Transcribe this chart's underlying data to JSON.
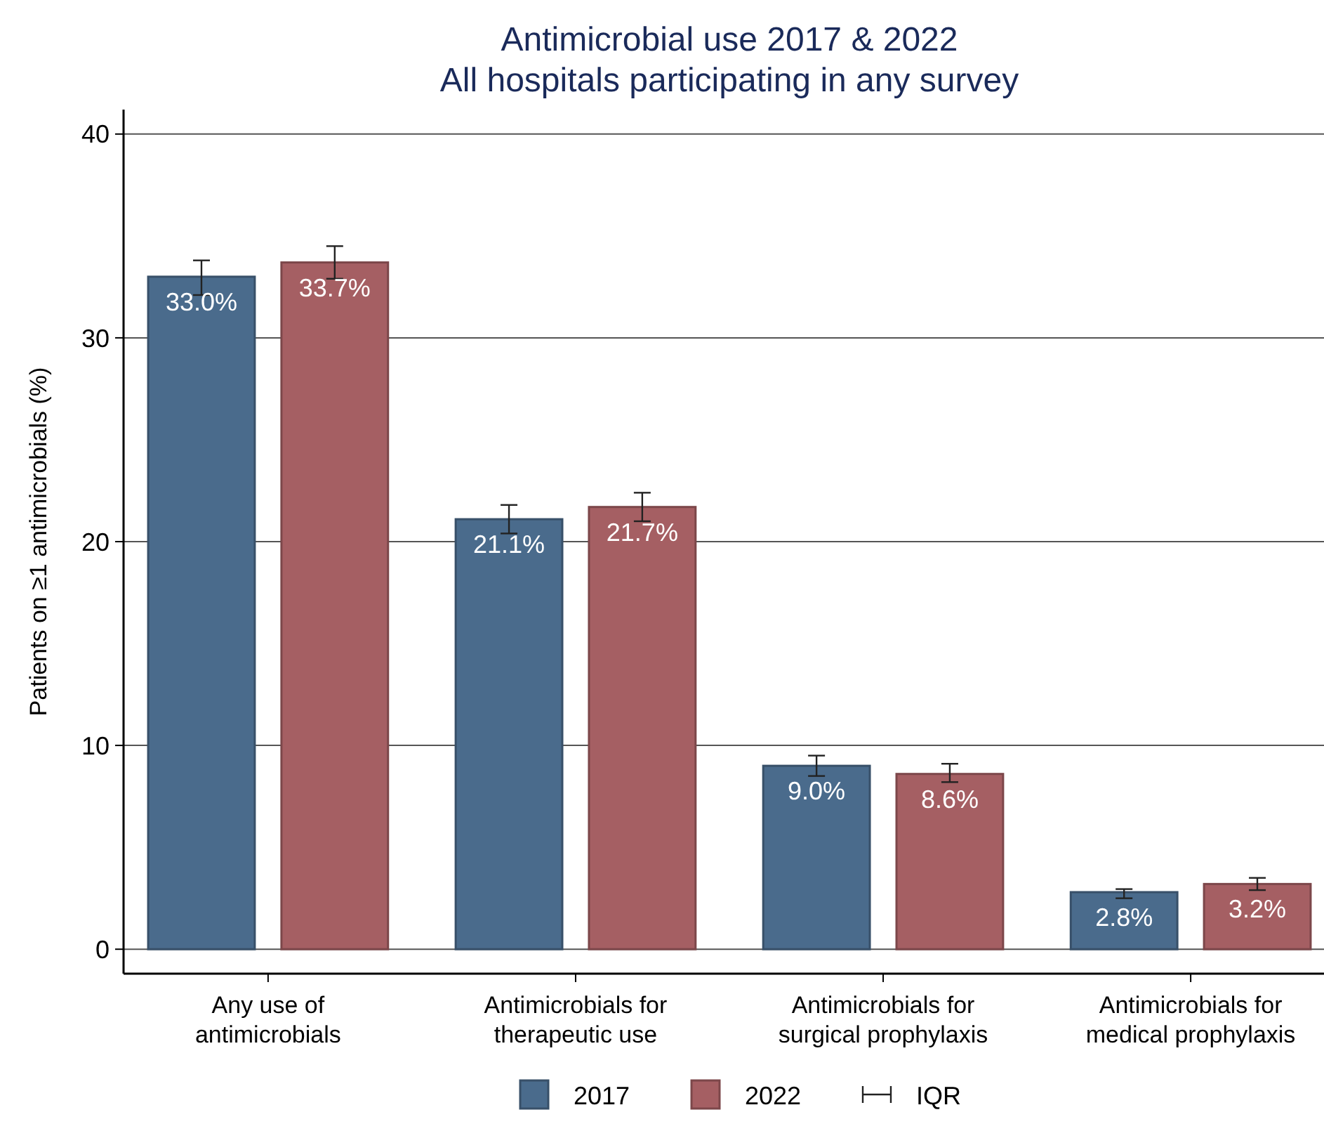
{
  "chart_data": {
    "type": "bar",
    "title": "Antimicrobial use 2017 & 2022",
    "subtitle": "All hospitals participating in any survey",
    "ylabel": "Patients on ≥1 antimicrobials (%)",
    "categories": [
      "Any use of antimicrobials",
      "Antimicrobials for therapeutic use",
      "Antimicrobials for surgical prophylaxis",
      "Antimicrobials for medical prophylaxis"
    ],
    "series": [
      {
        "name": "2017",
        "color": "#4a6b8c",
        "values": [
          33.0,
          21.1,
          9.0,
          2.8
        ],
        "value_labels": [
          "33.0%",
          "21.1%",
          "9.0%",
          "2.8%"
        ],
        "errors": [
          [
            32.1,
            33.8
          ],
          [
            20.4,
            21.8
          ],
          [
            8.5,
            9.5
          ],
          [
            2.5,
            2.95
          ]
        ]
      },
      {
        "name": "2022",
        "color": "#a55f63",
        "values": [
          33.7,
          21.7,
          8.6,
          3.2
        ],
        "value_labels": [
          "33.7%",
          "21.7%",
          "8.6%",
          "3.2%"
        ],
        "errors": [
          [
            32.9,
            34.5
          ],
          [
            21.0,
            22.4
          ],
          [
            8.2,
            9.1
          ],
          [
            2.9,
            3.5
          ]
        ]
      }
    ],
    "annotations": [
      "IQR"
    ],
    "ylim": [
      -1.2,
      41.2
    ],
    "yticks": [
      0,
      10,
      20,
      30,
      40
    ],
    "grid": "y",
    "legend": "bottom"
  }
}
